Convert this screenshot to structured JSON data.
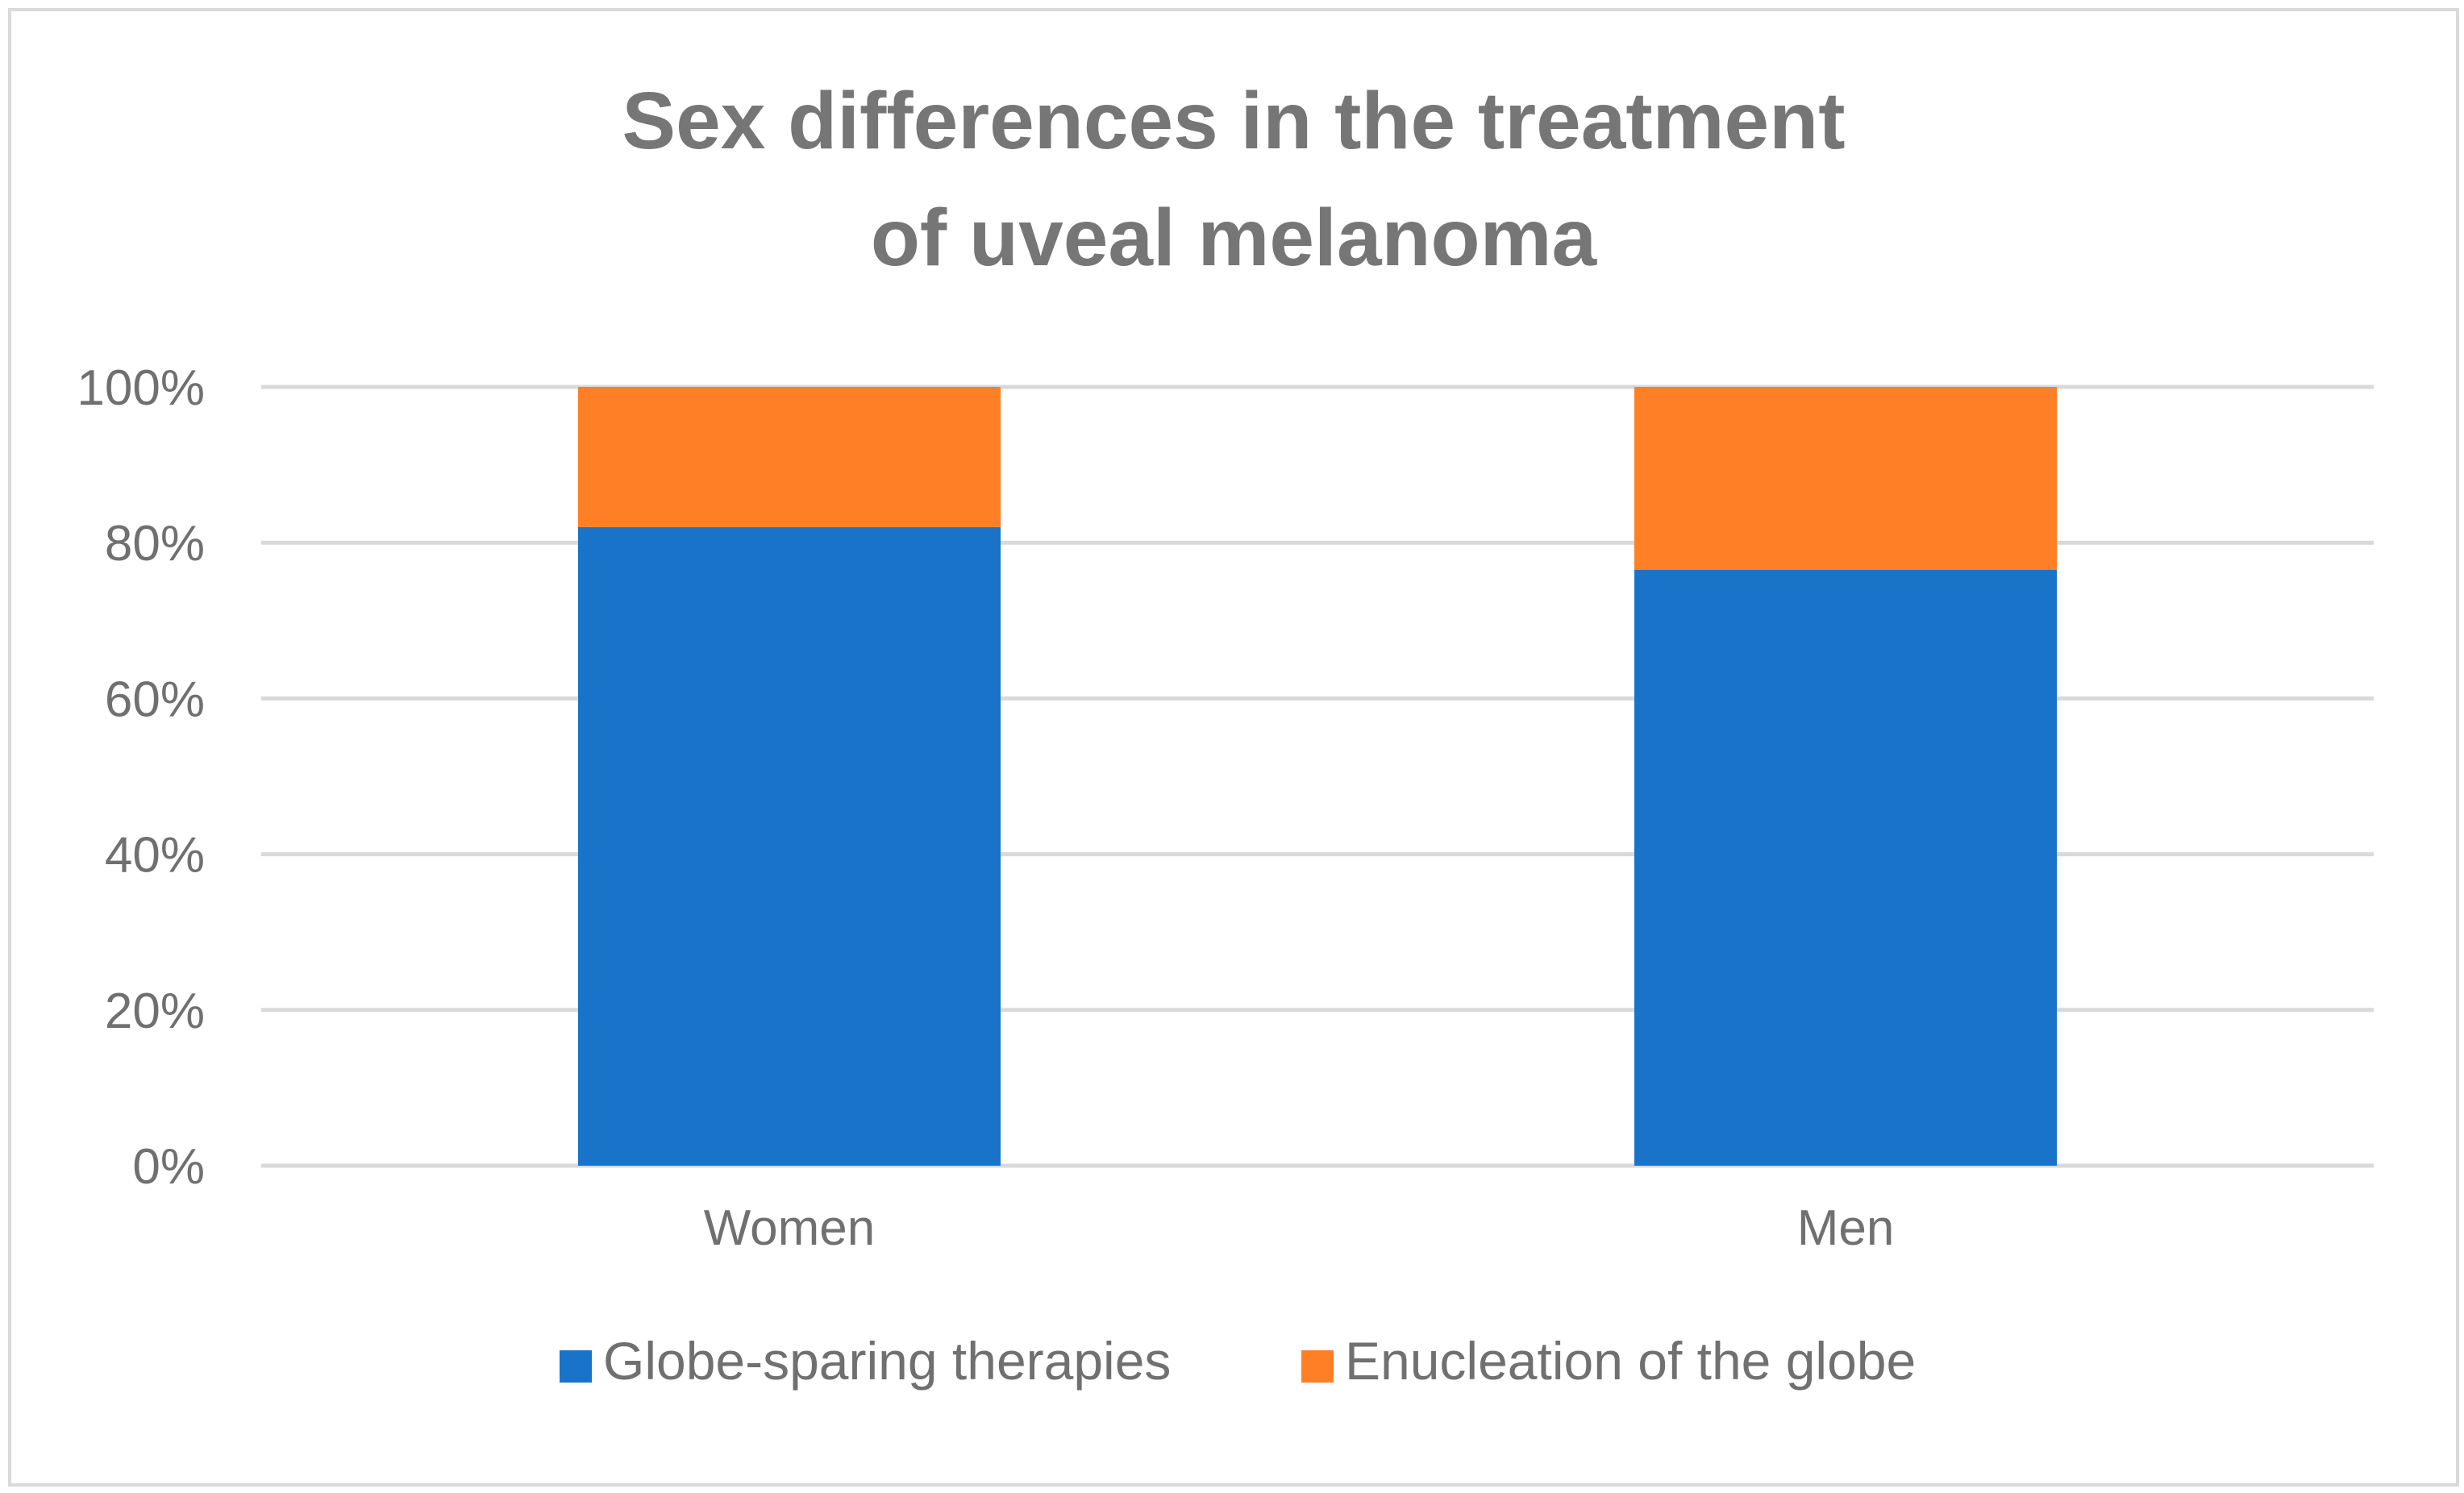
{
  "chart_data": {
    "type": "bar",
    "stacked": true,
    "title_lines": [
      "Sex differences in the treatment",
      "of uveal melanoma"
    ],
    "categories": [
      "Women",
      "Men"
    ],
    "series": [
      {
        "name": "Globe-sparing therapies",
        "color": "#1873c9",
        "values": [
          82,
          76.5
        ]
      },
      {
        "name": "Enucleation of the globe",
        "color": "#ff7f26",
        "values": [
          18,
          23.5
        ]
      }
    ],
    "ylim": [
      0,
      100
    ],
    "yticks": [
      0,
      20,
      40,
      60,
      80,
      100
    ],
    "ytick_labels": [
      "0%",
      "20%",
      "40%",
      "60%",
      "80%",
      "100%"
    ],
    "xlabel": "",
    "ylabel": "",
    "grid": true,
    "legend_position": "bottom",
    "grid_color": "#d9d9d9"
  }
}
